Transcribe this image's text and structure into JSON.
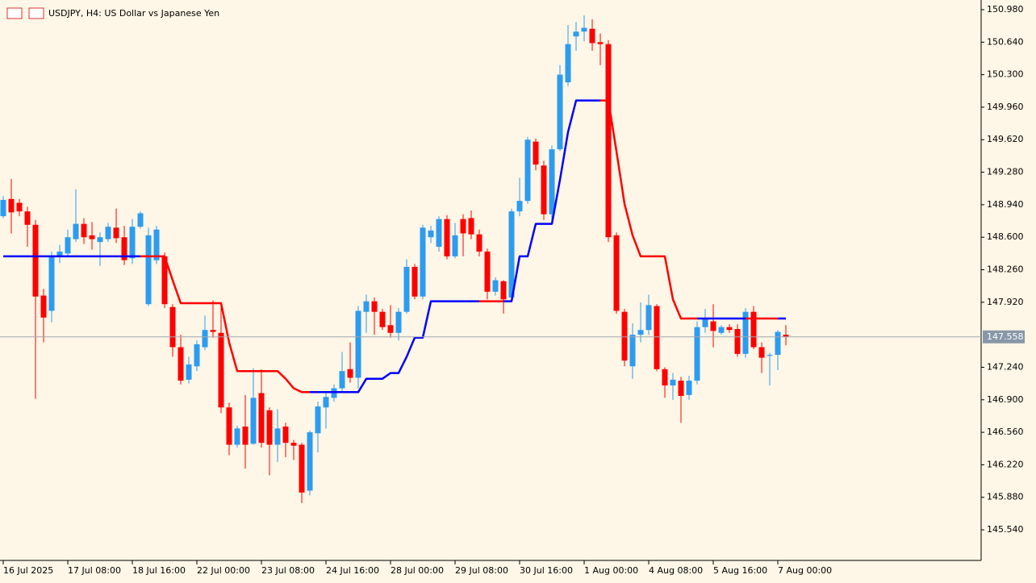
{
  "chart_data": {
    "type": "candlestick",
    "title": "USDJPY, H4:  US Dollar vs Japanese Yen",
    "categories": [
      "16 Jul 2025",
      null,
      null,
      null,
      null,
      null,
      null,
      null,
      "17 Jul 08:00",
      null,
      null,
      null,
      null,
      null,
      null,
      null,
      "18 Jul 16:00",
      null,
      null,
      null,
      null,
      null,
      null,
      null,
      "22 Jul 00:00",
      null,
      null,
      null,
      null,
      null,
      null,
      null,
      "23 Jul 08:00",
      null,
      null,
      null,
      null,
      null,
      null,
      null,
      "24 Jul 16:00",
      null,
      null,
      null,
      null,
      null,
      null,
      null,
      "28 Jul 00:00",
      null,
      null,
      null,
      null,
      null,
      null,
      null,
      "29 Jul 08:00",
      null,
      null,
      null,
      null,
      null,
      null,
      null,
      "30 Jul 16:00",
      null,
      null,
      null,
      null,
      null,
      null,
      null,
      "1 Aug 00:00",
      null,
      null,
      null,
      null,
      null,
      null,
      null,
      "4 Aug 08:00",
      null,
      null,
      null,
      null,
      null,
      null,
      null,
      "5 Aug 16:00",
      null,
      null,
      null,
      null,
      null,
      null,
      null,
      "7 Aug 00:00",
      null
    ],
    "open": [
      148.82,
      149.0,
      148.96,
      148.87,
      148.73,
      147.99,
      147.83,
      148.4,
      148.43,
      148.58,
      148.74,
      148.62,
      148.55,
      148.58,
      148.7,
      148.6,
      148.38,
      148.71,
      147.9,
      148.36,
      148.4,
      147.87,
      147.45,
      147.11,
      147.25,
      147.45,
      147.63,
      147.6,
      146.82,
      146.43,
      146.62,
      146.44,
      146.97,
      146.79,
      146.43,
      146.62,
      146.45,
      146.43,
      145.95,
      146.55,
      146.82,
      146.92,
      147.02,
      147.22,
      147.13,
      147.82,
      147.93,
      147.82,
      147.68,
      147.6,
      147.82,
      148.29,
      147.98,
      148.6,
      148.5,
      148.79,
      148.4,
      148.79,
      148.8,
      148.63,
      148.45,
      148.03,
      148.14,
      147.97,
      148.87,
      148.98,
      149.6,
      149.35,
      148.84,
      149.52,
      150.22,
      150.7,
      150.75,
      150.78,
      150.64,
      150.62,
      148.62,
      147.82,
      147.25,
      147.58,
      147.63,
      147.88,
      147.22,
      147.05,
      147.1,
      146.95,
      147.1,
      147.66,
      147.72,
      147.6,
      147.66,
      147.64,
      147.38,
      147.82,
      147.45,
      147.36,
      147.37,
      147.58
    ],
    "high": [
      149.03,
      149.21,
      149.0,
      148.92,
      148.78,
      148.06,
      148.45,
      148.52,
      148.68,
      149.1,
      148.8,
      148.76,
      148.65,
      148.75,
      148.9,
      148.72,
      148.79,
      148.87,
      148.7,
      148.72,
      148.44,
      147.9,
      147.58,
      147.35,
      147.52,
      147.78,
      147.94,
      147.92,
      146.87,
      146.63,
      146.95,
      147.23,
      147.22,
      146.82,
      146.8,
      146.66,
      146.48,
      146.45,
      146.58,
      146.88,
      146.98,
      147.06,
      147.4,
      147.5,
      147.88,
      148.0,
      147.97,
      147.85,
      147.89,
      147.86,
      148.37,
      148.32,
      148.73,
      148.72,
      148.82,
      148.83,
      148.75,
      148.84,
      148.88,
      148.68,
      148.48,
      148.18,
      148.15,
      148.9,
      149.22,
      149.65,
      149.63,
      149.4,
      149.56,
      150.4,
      150.82,
      150.85,
      150.92,
      150.88,
      150.73,
      150.66,
      148.65,
      147.85,
      147.7,
      147.92,
      148.0,
      147.9,
      147.24,
      147.18,
      147.14,
      147.15,
      147.72,
      147.85,
      147.9,
      147.68,
      147.69,
      147.69,
      147.86,
      147.88,
      147.5,
      147.39,
      147.63,
      147.68
    ],
    "low": [
      148.8,
      148.64,
      148.82,
      148.5,
      146.91,
      147.5,
      147.71,
      148.33,
      148.4,
      148.55,
      148.53,
      148.47,
      148.3,
      148.55,
      148.54,
      148.31,
      148.32,
      148.69,
      147.88,
      148.32,
      147.86,
      147.35,
      147.06,
      147.07,
      147.2,
      147.42,
      147.55,
      146.76,
      146.32,
      146.4,
      146.18,
      146.43,
      146.4,
      146.11,
      146.25,
      146.3,
      146.27,
      145.82,
      145.9,
      146.35,
      146.6,
      146.88,
      146.98,
      147.08,
      147.02,
      147.6,
      147.58,
      147.63,
      147.55,
      147.52,
      147.8,
      147.95,
      147.95,
      148.54,
      148.45,
      148.37,
      148.38,
      148.4,
      148.58,
      148.4,
      147.95,
      147.99,
      147.8,
      147.93,
      148.82,
      148.95,
      149.3,
      148.78,
      148.75,
      149.5,
      150.18,
      150.55,
      150.65,
      150.55,
      150.4,
      148.55,
      147.8,
      147.25,
      147.12,
      147.5,
      147.58,
      147.2,
      146.92,
      146.9,
      146.66,
      146.9,
      147.06,
      147.6,
      147.45,
      147.58,
      147.6,
      147.35,
      147.34,
      147.43,
      147.18,
      147.05,
      147.21,
      147.47
    ],
    "close": [
      148.99,
      148.86,
      148.87,
      148.73,
      147.98,
      147.76,
      148.4,
      148.45,
      148.6,
      148.74,
      148.6,
      148.58,
      148.6,
      148.71,
      148.59,
      148.36,
      148.71,
      148.85,
      148.62,
      148.68,
      147.9,
      147.45,
      147.1,
      147.27,
      147.48,
      147.63,
      147.61,
      146.82,
      146.43,
      146.6,
      146.43,
      146.92,
      146.45,
      146.43,
      146.6,
      146.45,
      146.42,
      145.93,
      146.56,
      146.83,
      146.93,
      147.02,
      147.2,
      147.13,
      147.83,
      147.93,
      147.82,
      147.66,
      147.6,
      147.82,
      148.29,
      147.98,
      148.7,
      148.67,
      148.79,
      148.4,
      148.62,
      148.64,
      148.63,
      148.45,
      148.03,
      148.15,
      147.95,
      148.87,
      148.98,
      149.62,
      149.36,
      148.84,
      149.52,
      150.3,
      150.62,
      150.75,
      150.79,
      150.63,
      150.62,
      148.6,
      147.83,
      147.31,
      147.58,
      147.63,
      147.89,
      147.22,
      147.05,
      147.11,
      146.94,
      147.1,
      147.66,
      147.75,
      147.62,
      147.66,
      147.63,
      147.38,
      147.82,
      147.45,
      147.34,
      147.37,
      147.61,
      147.558
    ],
    "up_color": "#2c9cf0",
    "down_color": "#ff0000",
    "series": [
      {
        "color": "#ff0000",
        "values": [
          null,
          null,
          null,
          null,
          null,
          null,
          null,
          null,
          null,
          null,
          null,
          null,
          null,
          null,
          null,
          null,
          null,
          148.4,
          148.4,
          148.4,
          148.4,
          148.15,
          147.91,
          147.91,
          147.91,
          147.91,
          147.91,
          147.91,
          147.5,
          147.2,
          147.2,
          147.2,
          147.2,
          147.2,
          147.2,
          147.12,
          147.02,
          146.98,
          146.98,
          null,
          null,
          null,
          null,
          null,
          null,
          null,
          null,
          null,
          null,
          null,
          null,
          null,
          null,
          null,
          null,
          null,
          null,
          null,
          null,
          147.93,
          147.93,
          147.93,
          147.93,
          null,
          null,
          null,
          null,
          null,
          null,
          null,
          null,
          null,
          null,
          null,
          150.03,
          150.03,
          149.5,
          148.95,
          148.62,
          148.4,
          148.4,
          148.4,
          148.4,
          147.95,
          147.75,
          147.75,
          147.75,
          null,
          null,
          null,
          null,
          null,
          147.75,
          147.75,
          147.75,
          147.75,
          147.75,
          null
        ]
      },
      {
        "color": "#0000ff",
        "values": [
          148.4,
          148.4,
          148.4,
          148.4,
          148.4,
          148.4,
          148.4,
          148.4,
          148.4,
          148.4,
          148.4,
          148.4,
          148.4,
          148.4,
          148.4,
          148.4,
          148.4,
          148.4,
          null,
          null,
          null,
          null,
          null,
          null,
          null,
          null,
          null,
          null,
          null,
          null,
          null,
          null,
          null,
          null,
          null,
          null,
          null,
          null,
          146.98,
          146.98,
          146.98,
          146.98,
          146.98,
          146.98,
          146.98,
          147.12,
          147.12,
          147.12,
          147.18,
          147.18,
          147.35,
          147.55,
          147.55,
          147.93,
          147.93,
          147.93,
          147.93,
          147.93,
          147.93,
          147.93,
          null,
          null,
          147.93,
          147.93,
          148.4,
          148.4,
          148.74,
          148.74,
          148.74,
          149.2,
          149.7,
          150.03,
          150.03,
          150.03,
          150.03,
          null,
          null,
          null,
          null,
          null,
          null,
          null,
          null,
          null,
          null,
          null,
          147.75,
          147.75,
          147.75,
          147.75,
          147.75,
          147.75,
          147.75,
          null,
          null,
          null,
          147.75,
          147.75
        ]
      }
    ],
    "last_price": 147.558,
    "last_price_color": "#8797a8",
    "ylim": [
      145.22,
      151.081
    ],
    "yticks": [
      {
        "value": 150.98,
        "label": "150.980"
      },
      {
        "value": 150.64,
        "label": "150.640"
      },
      {
        "value": 150.3,
        "label": "150.300"
      },
      {
        "value": 149.96,
        "label": "149.960"
      },
      {
        "value": 149.62,
        "label": "149.620"
      },
      {
        "value": 149.28,
        "label": "149.280"
      },
      {
        "value": 148.94,
        "label": "148.940"
      },
      {
        "value": 148.6,
        "label": "148.600"
      },
      {
        "value": 148.26,
        "label": "148.260"
      },
      {
        "value": 147.92,
        "label": "147.920"
      },
      {
        "value": 147.24,
        "label": "147.240"
      },
      {
        "value": 146.9,
        "label": "146.900"
      },
      {
        "value": 146.56,
        "label": "146.560"
      },
      {
        "value": 146.22,
        "label": "146.220"
      },
      {
        "value": 145.88,
        "label": "145.880"
      },
      {
        "value": 145.54,
        "label": "145.540"
      }
    ],
    "grid": false
  }
}
